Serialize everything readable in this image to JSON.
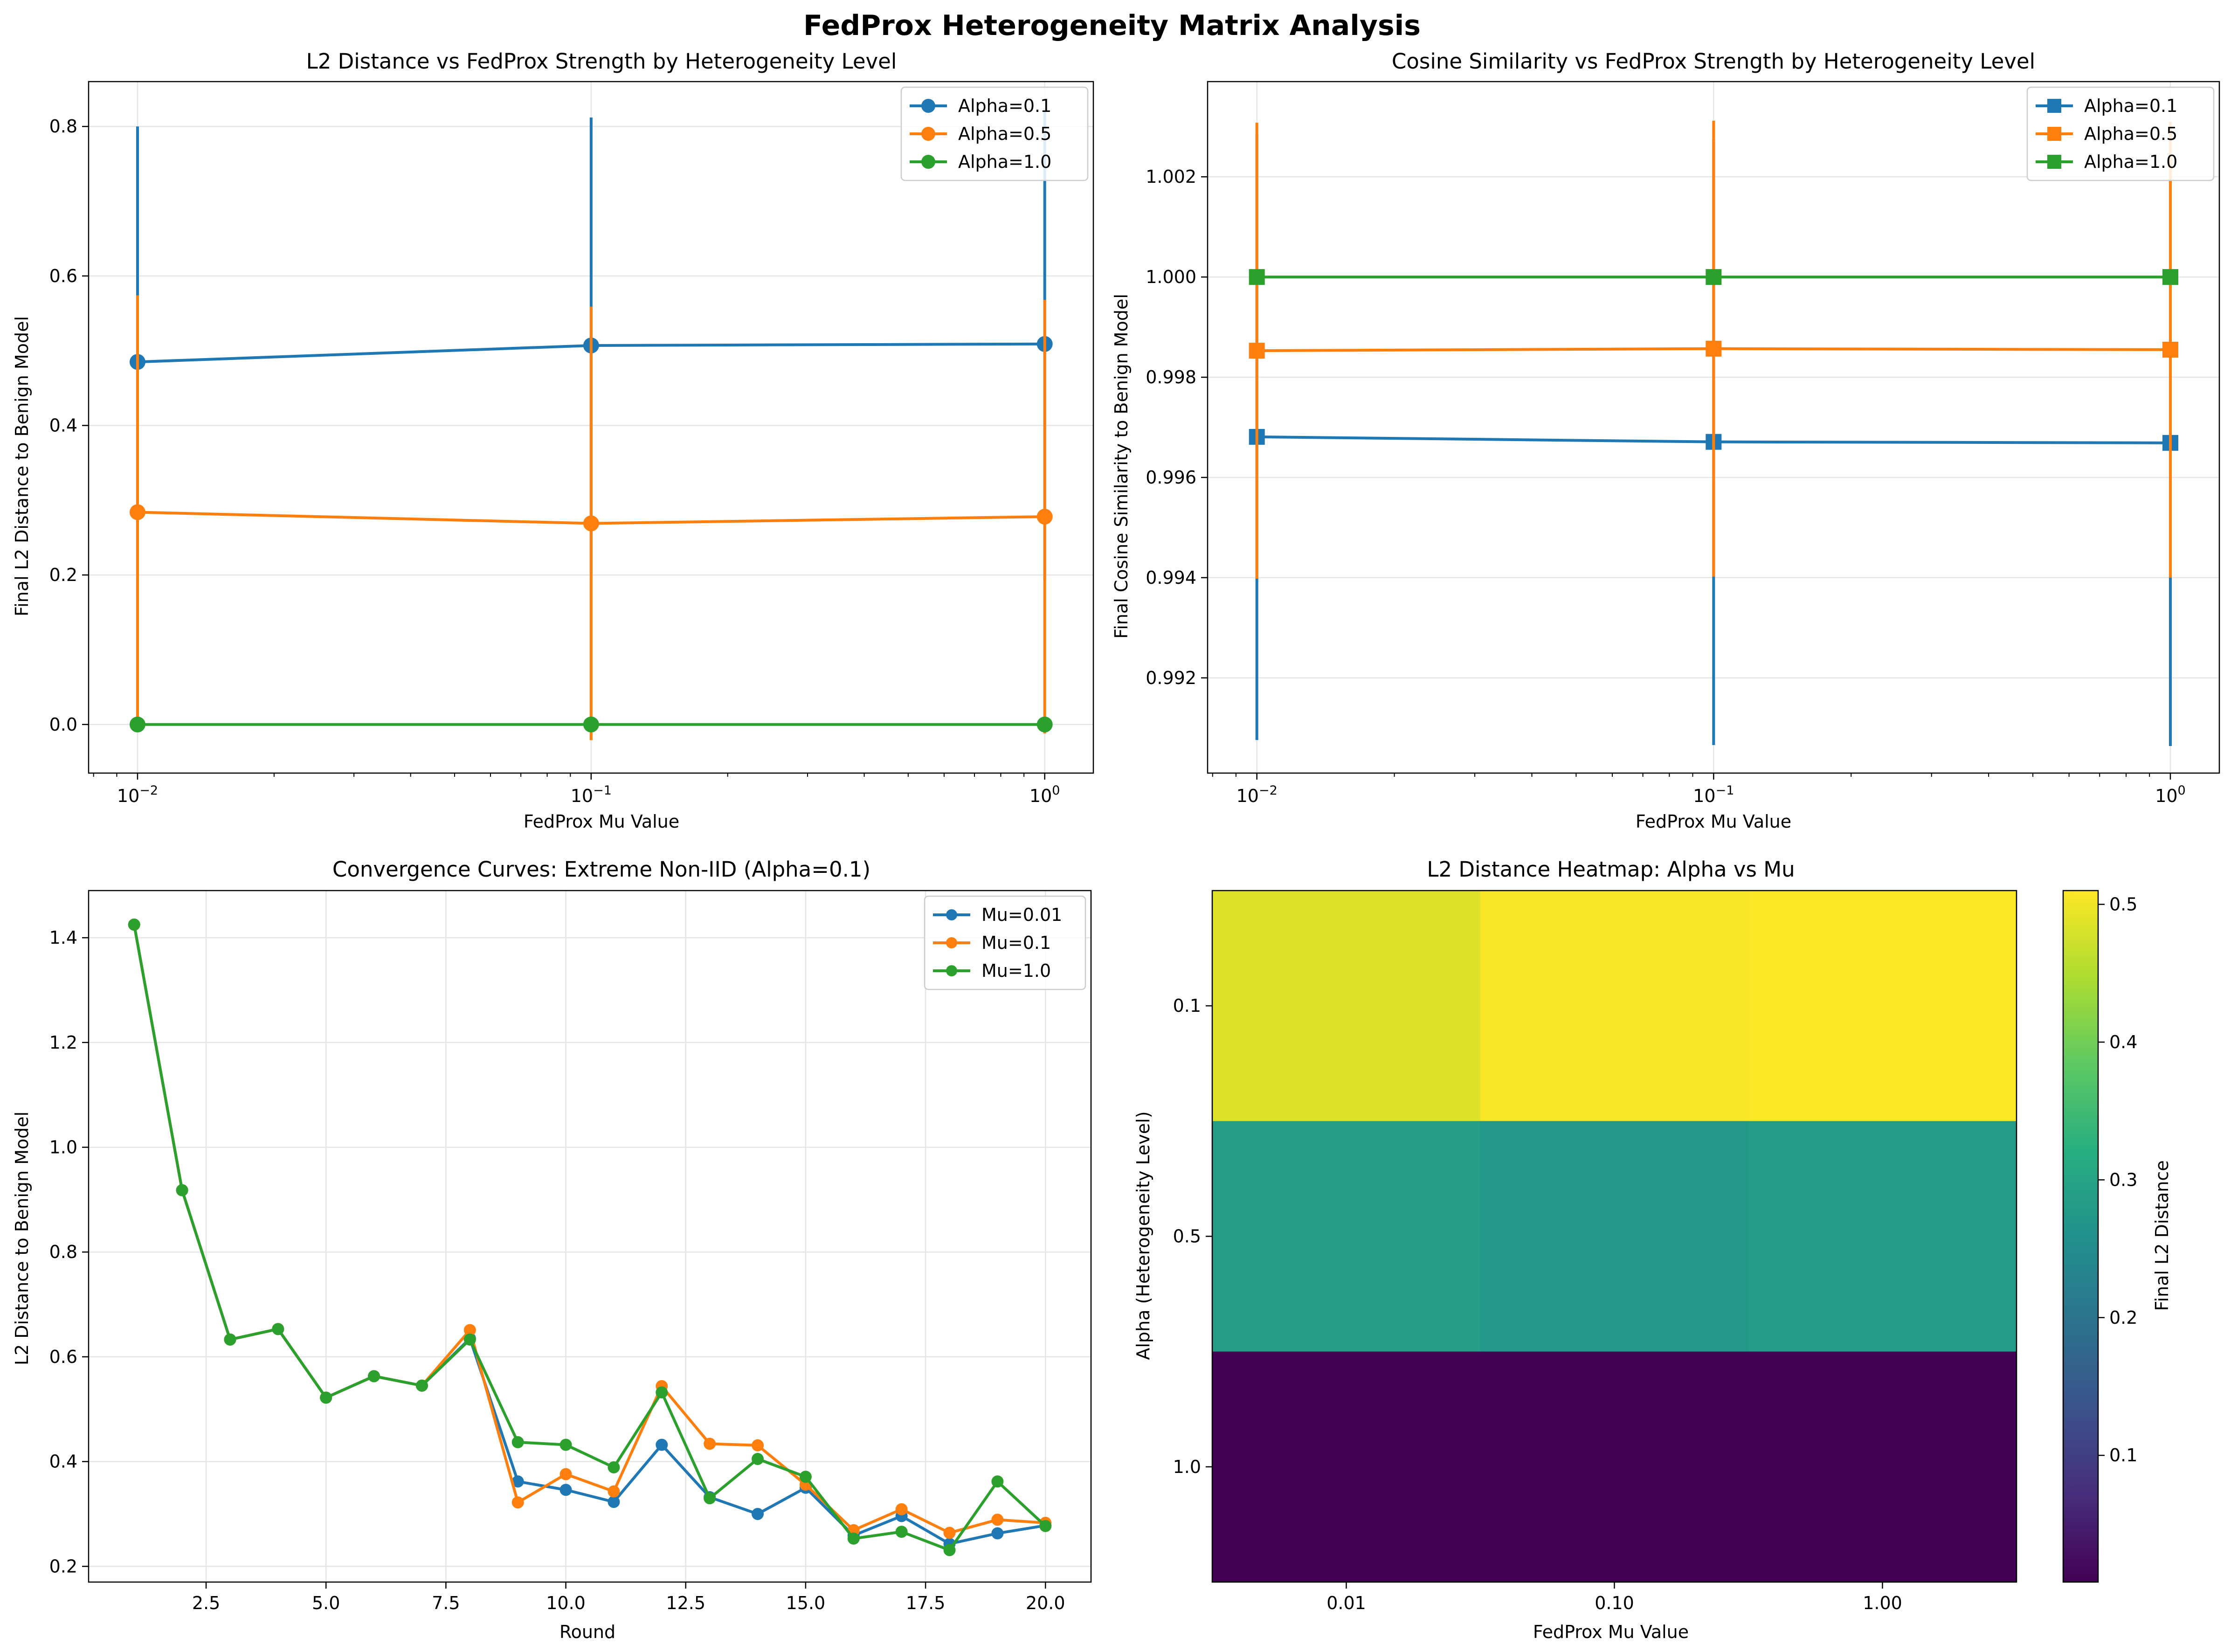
{
  "figure": {
    "title": "FedProx Heterogeneity Matrix Analysis"
  },
  "colors": {
    "series1": "#1f77b4",
    "series2": "#ff7f0e",
    "series3": "#2ca02c",
    "grid": "#e5e5e5"
  },
  "chart_data": [
    {
      "type": "line",
      "title": "L2 Distance vs FedProx Strength by Heterogeneity Level",
      "xlabel": "FedProx Mu Value",
      "ylabel": "Final L2 Distance to Benign Model",
      "xscale": "log",
      "x": [
        0.01,
        0.1,
        1.0
      ],
      "xlim": [
        0.0078,
        1.28
      ],
      "ylim": [
        -0.065,
        0.86
      ],
      "yticks": [
        0.0,
        0.2,
        0.4,
        0.6,
        0.8
      ],
      "ytick_labels": [
        "0.0",
        "0.2",
        "0.4",
        "0.6",
        "0.8"
      ],
      "xtick_labels": [
        {
          "base": "10",
          "exp": "−2"
        },
        {
          "base": "10",
          "exp": "−1"
        },
        {
          "base": "10",
          "exp": "0"
        }
      ],
      "marker": "circle",
      "grid": true,
      "legend": "top-right",
      "series": [
        {
          "name": "Alpha=0.1",
          "values": [
            0.485,
            0.507,
            0.509
          ],
          "err": [
            0.315,
            0.305,
            0.315
          ]
        },
        {
          "name": "Alpha=0.5",
          "values": [
            0.284,
            0.269,
            0.278
          ],
          "err": [
            0.29,
            0.29,
            0.29
          ]
        },
        {
          "name": "Alpha=1.0",
          "values": [
            0.0,
            0.0,
            0.0
          ],
          "err": [
            0,
            0,
            0
          ]
        }
      ]
    },
    {
      "type": "line",
      "title": "Cosine Similarity vs FedProx Strength by Heterogeneity Level",
      "xlabel": "FedProx Mu Value",
      "ylabel": "Final Cosine Similarity to Benign Model",
      "xscale": "log",
      "x": [
        0.01,
        0.1,
        1.0
      ],
      "xlim": [
        0.0078,
        1.28
      ],
      "ylim": [
        0.9901,
        1.0039
      ],
      "yticks": [
        0.992,
        0.994,
        0.996,
        0.998,
        1.0,
        1.002
      ],
      "ytick_labels": [
        "0.992",
        "0.994",
        "0.996",
        "0.998",
        "1.000",
        "1.002"
      ],
      "xtick_labels": [
        {
          "base": "10",
          "exp": "−2"
        },
        {
          "base": "10",
          "exp": "−1"
        },
        {
          "base": "10",
          "exp": "0"
        }
      ],
      "marker": "square",
      "grid": true,
      "legend": "top-right",
      "series": [
        {
          "name": "Alpha=0.1",
          "values": [
            0.99681,
            0.99671,
            0.99669
          ],
          "err": [
            0.00605,
            0.00605,
            0.00605
          ]
        },
        {
          "name": "Alpha=0.5",
          "values": [
            0.99853,
            0.99857,
            0.99855
          ],
          "err": [
            0.00455,
            0.00455,
            0.00455
          ]
        },
        {
          "name": "Alpha=1.0",
          "values": [
            1.0,
            1.0,
            1.0
          ],
          "err": [
            0,
            0,
            0
          ]
        }
      ]
    },
    {
      "type": "line",
      "title": "Convergence Curves: Extreme Non-IID (Alpha=0.1)",
      "xlabel": "Round",
      "ylabel": "L2 Distance to Benign Model",
      "x": [
        1,
        2,
        3,
        4,
        5,
        6,
        7,
        8,
        9,
        10,
        11,
        12,
        13,
        14,
        15,
        16,
        17,
        18,
        19,
        20
      ],
      "xlim": [
        0.05,
        20.95
      ],
      "ylim": [
        0.17,
        1.49
      ],
      "xticks": [
        2.5,
        5.0,
        7.5,
        10.0,
        12.5,
        15.0,
        17.5,
        20.0
      ],
      "xtick_labels": [
        "2.5",
        "5.0",
        "7.5",
        "10.0",
        "12.5",
        "15.0",
        "17.5",
        "20.0"
      ],
      "yticks": [
        0.2,
        0.4,
        0.6,
        0.8,
        1.0,
        1.2,
        1.4
      ],
      "ytick_labels": [
        "0.2",
        "0.4",
        "0.6",
        "0.8",
        "1.0",
        "1.2",
        "1.4"
      ],
      "marker": "circle",
      "grid": true,
      "legend": "top-right",
      "series": [
        {
          "name": "Mu=0.01",
          "values": [
            1.425,
            0.918,
            0.633,
            0.653,
            0.522,
            0.563,
            0.545,
            0.635,
            0.362,
            0.346,
            0.323,
            0.432,
            0.332,
            0.3,
            0.35,
            0.259,
            0.296,
            0.243,
            0.263,
            0.278
          ]
        },
        {
          "name": "Mu=0.1",
          "values": [
            1.425,
            0.918,
            0.633,
            0.653,
            0.522,
            0.563,
            0.545,
            0.651,
            0.322,
            0.376,
            0.343,
            0.544,
            0.434,
            0.431,
            0.356,
            0.269,
            0.309,
            0.264,
            0.289,
            0.283
          ]
        },
        {
          "name": "Mu=1.0",
          "values": [
            1.425,
            0.918,
            0.633,
            0.653,
            0.522,
            0.563,
            0.545,
            0.633,
            0.437,
            0.432,
            0.389,
            0.532,
            0.33,
            0.405,
            0.371,
            0.253,
            0.266,
            0.231,
            0.362,
            0.277
          ]
        }
      ]
    },
    {
      "type": "heatmap",
      "title": "L2 Distance Heatmap: Alpha vs Mu",
      "xlabel": "FedProx Mu Value",
      "ylabel": "Alpha (Heterogeneity Level)",
      "x_categories": [
        "0.01",
        "0.10",
        "1.00"
      ],
      "y_categories": [
        "0.1",
        "0.5",
        "1.0"
      ],
      "values": [
        [
          0.485,
          0.507,
          0.509
        ],
        [
          0.284,
          0.269,
          0.278
        ],
        [
          0.0,
          0.0,
          0.0
        ]
      ],
      "colormap": "viridis",
      "vmin": 0.0,
      "vmax": 0.51,
      "colorbar": {
        "label": "Final L2 Distance",
        "range": [
          0.008,
          0.51
        ],
        "ticks": [
          0.1,
          0.2,
          0.3,
          0.4,
          0.5
        ],
        "tick_labels": [
          "0.1",
          "0.2",
          "0.3",
          "0.4",
          "0.5"
        ]
      }
    }
  ]
}
